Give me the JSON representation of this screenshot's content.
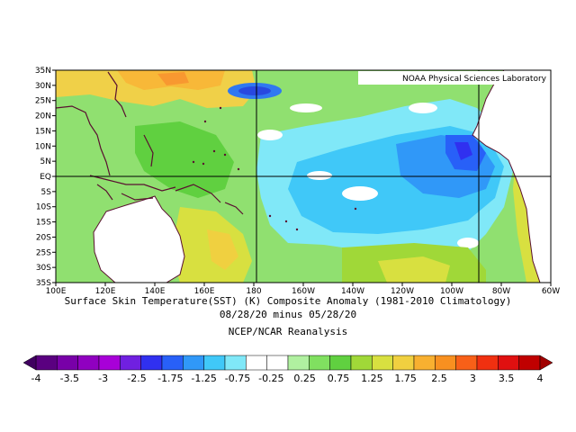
{
  "map": {
    "credit": "NOAA Physical Sciences Laboratory",
    "lat_labels": [
      "35N",
      "30N",
      "25N",
      "20N",
      "15N",
      "10N",
      "5N",
      "EQ",
      "5S",
      "10S",
      "15S",
      "20S",
      "25S",
      "30S",
      "35S"
    ],
    "lon_labels": [
      "100E",
      "120E",
      "140E",
      "160E",
      "180",
      "160W",
      "140W",
      "120W",
      "100W",
      "80W",
      "60W"
    ],
    "lat_range": [
      -35,
      35
    ],
    "lon_range": [
      100,
      300
    ]
  },
  "caption": {
    "line1": "Surface Skin Temperature(SST) (K) Composite Anomaly (1981-2010 Climatology)",
    "line2": "08/28/20 minus 05/28/20",
    "line3": "NCEP/NCAR Reanalysis"
  },
  "colorbar": {
    "labels": [
      "-4",
      "-3.5",
      "-3",
      "-2.5",
      "-1.75",
      "-1.25",
      "-0.75",
      "-0.25",
      "0.25",
      "0.75",
      "1.25",
      "1.75",
      "2.5",
      "3",
      "3.5",
      "4"
    ],
    "colors": [
      "#5a0080",
      "#7800a8",
      "#9000c0",
      "#a800d8",
      "#7020e0",
      "#3030f0",
      "#2860f8",
      "#3098f8",
      "#40c8f8",
      "#80e8f8",
      "#ffffff",
      "#ffffff",
      "#b0f0a0",
      "#80e060",
      "#60d040",
      "#a0d838",
      "#d8e040",
      "#f0d040",
      "#f8b030",
      "#f89020",
      "#f86018",
      "#f03010",
      "#e01010",
      "#c00000"
    ]
  }
}
